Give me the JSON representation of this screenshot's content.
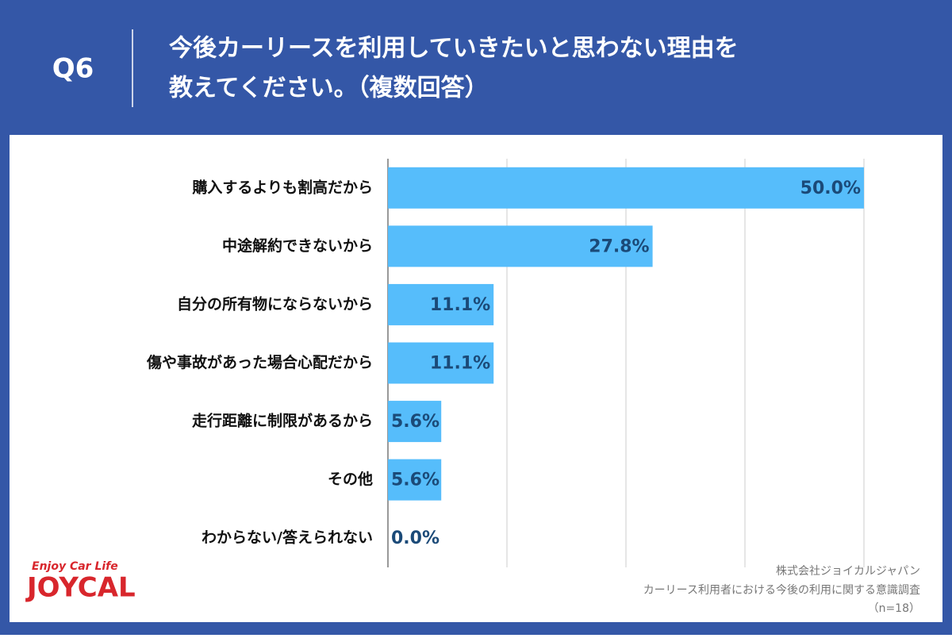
{
  "chart_data": {
    "type": "bar",
    "orientation": "horizontal",
    "question": "Q6",
    "title": [
      "今後カーリースを利用していきたいと思わない理由を",
      "教えてください。（複数回答）"
    ],
    "categories": [
      "購入するよりも割高だから",
      "中途解約できないから",
      "自分の所有物にならないから",
      "傷や事故があった場合心配だから",
      "走行距離に制限があるから",
      "その他",
      "わからない/答えられない"
    ],
    "values": [
      50.0,
      27.8,
      11.1,
      11.1,
      5.6,
      5.6,
      0.0
    ],
    "value_labels": [
      "50.0%",
      "27.8%",
      "11.1%",
      "11.1%",
      "5.6%",
      "5.6%",
      "0.0%"
    ],
    "color": "#56bdfb",
    "xlim": [
      0,
      50
    ],
    "xticks": [
      0,
      12.5,
      25,
      37.5,
      50
    ],
    "grid": true,
    "source": [
      "株式会社ジョイカルジャパン",
      "カーリース利用者における今後の利用に関する意識調査",
      "（n=18）"
    ],
    "logo": {
      "tagline": "Enjoy Car Life",
      "name": "JOYCAL"
    }
  }
}
